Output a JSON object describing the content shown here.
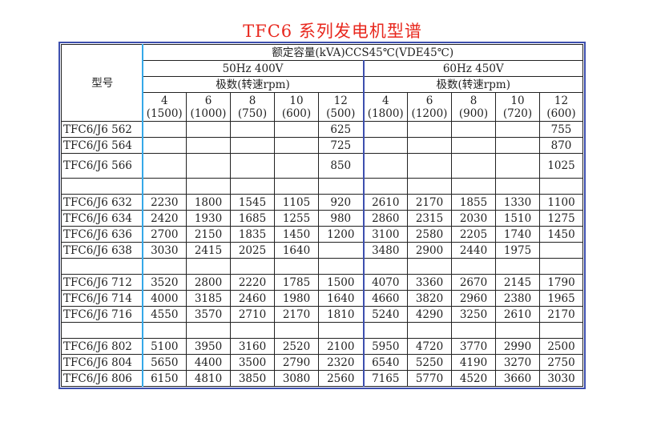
{
  "title": "TFC6 系列发电机型谱",
  "table": {
    "model_header": "型号",
    "rating_header": "额定容量(kVA)CCS45℃(VDE45℃)",
    "groups": [
      {
        "label": "50Hz 400V",
        "poles_label": "极数(转速rpm)",
        "columns": [
          {
            "poles": "4",
            "rpm": "(1500)"
          },
          {
            "poles": "6",
            "rpm": "(1000)"
          },
          {
            "poles": "8",
            "rpm": "(750)"
          },
          {
            "poles": "10",
            "rpm": "(600)"
          },
          {
            "poles": "12",
            "rpm": "(500)"
          }
        ]
      },
      {
        "label": "60Hz 450V",
        "poles_label": "极数(转速rpm)",
        "columns": [
          {
            "poles": "4",
            "rpm": "(1800)"
          },
          {
            "poles": "6",
            "rpm": "(1200)"
          },
          {
            "poles": "8",
            "rpm": "(900)"
          },
          {
            "poles": "10",
            "rpm": "(720)"
          },
          {
            "poles": "12",
            "rpm": "(600)"
          }
        ]
      }
    ],
    "rows": [
      {
        "model": "TFC6/J6 562",
        "values": [
          "",
          "",
          "",
          "",
          "625",
          "",
          "",
          "",
          "",
          "755"
        ]
      },
      {
        "model": "TFC6/J6 564",
        "values": [
          "",
          "",
          "",
          "",
          "725",
          "",
          "",
          "",
          "",
          "870"
        ]
      },
      {
        "model": "TFC6/J6 566",
        "values": [
          "",
          "",
          "",
          "",
          "850",
          "",
          "",
          "",
          "",
          "1025"
        ]
      },
      {
        "model": "",
        "values": [
          "",
          "",
          "",
          "",
          "",
          "",
          "",
          "",
          "",
          ""
        ]
      },
      {
        "model": "TFC6/J6 632",
        "values": [
          "2230",
          "1800",
          "1545",
          "1105",
          "920",
          "2610",
          "2170",
          "1855",
          "1330",
          "1100"
        ]
      },
      {
        "model": "TFC6/J6 634",
        "values": [
          "2420",
          "1930",
          "1685",
          "1255",
          "980",
          "2860",
          "2315",
          "2030",
          "1510",
          "1275"
        ]
      },
      {
        "model": "TFC6/J6 636",
        "values": [
          "2700",
          "2150",
          "1835",
          "1450",
          "1200",
          "3100",
          "2580",
          "2205",
          "1740",
          "1450"
        ]
      },
      {
        "model": "TFC6/J6 638",
        "values": [
          "3030",
          "2415",
          "2025",
          "1640",
          "",
          "3480",
          "2900",
          "2440",
          "1975",
          ""
        ]
      },
      {
        "model": "",
        "values": [
          "",
          "",
          "",
          "",
          "",
          "",
          "",
          "",
          "",
          ""
        ]
      },
      {
        "model": "TFC6/J6 712",
        "values": [
          "3520",
          "2800",
          "2220",
          "1785",
          "1500",
          "4070",
          "3360",
          "2670",
          "2145",
          "1790"
        ]
      },
      {
        "model": "TFC6/J6 714",
        "values": [
          "4000",
          "3185",
          "2460",
          "1980",
          "1640",
          "4660",
          "3820",
          "2960",
          "2380",
          "1965"
        ]
      },
      {
        "model": "TFC6/J6 716",
        "values": [
          "4550",
          "3570",
          "2710",
          "2170",
          "1810",
          "5240",
          "4290",
          "3250",
          "2610",
          "2170"
        ]
      },
      {
        "model": "",
        "values": [
          "",
          "",
          "",
          "",
          "",
          "",
          "",
          "",
          "",
          ""
        ]
      },
      {
        "model": "TFC6/J6 802",
        "values": [
          "5100",
          "3950",
          "3160",
          "2520",
          "2100",
          "5950",
          "4720",
          "3770",
          "2990",
          "2500"
        ]
      },
      {
        "model": "TFC6/J6 804",
        "values": [
          "5650",
          "4400",
          "3500",
          "2790",
          "2320",
          "6540",
          "5250",
          "4190",
          "3270",
          "2750"
        ]
      },
      {
        "model": "TFC6/J6 806",
        "values": [
          "6150",
          "4810",
          "3850",
          "3080",
          "2560",
          "7165",
          "5770",
          "4520",
          "3660",
          "3030"
        ]
      }
    ]
  }
}
